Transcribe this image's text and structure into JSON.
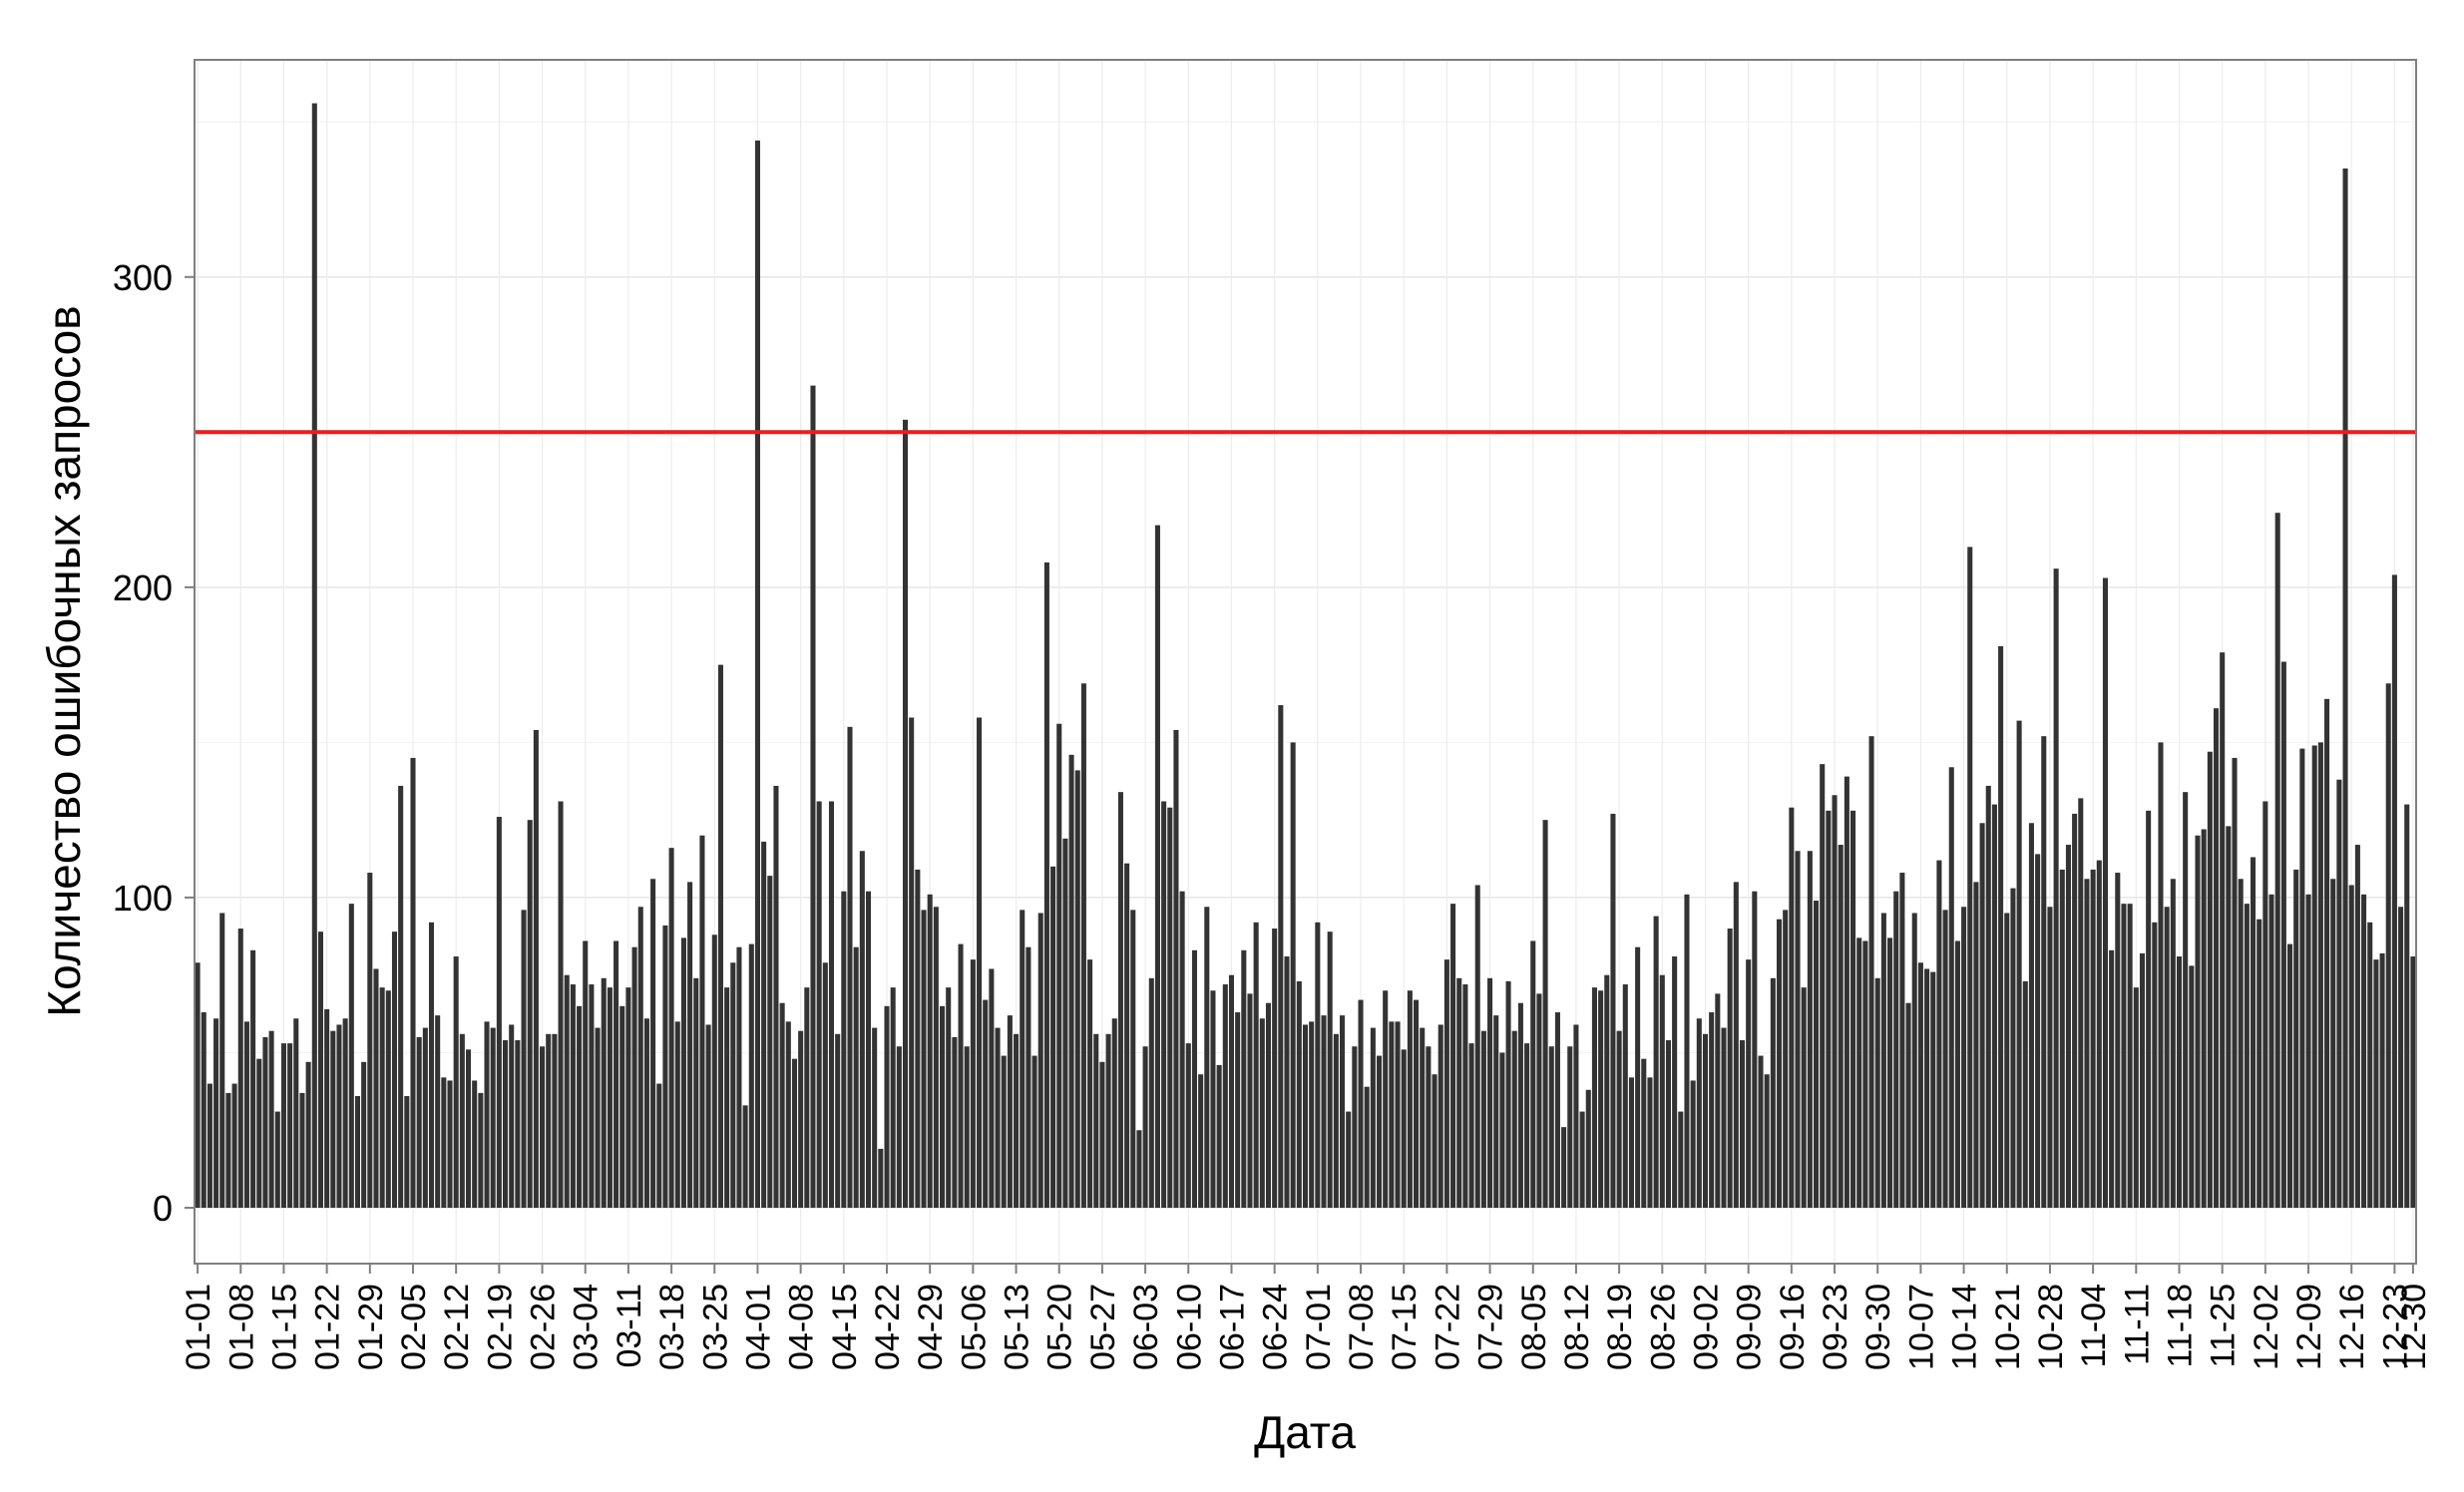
{
  "chart_data": {
    "type": "bar",
    "title": "",
    "xlabel": "Дата",
    "ylabel": "Количество ошибочных запросов",
    "ylim": [
      -18,
      370
    ],
    "yticks": [
      0,
      100,
      200,
      300
    ],
    "grid": true,
    "x_tick_labels": [
      "01-01",
      "01-08",
      "01-15",
      "01-22",
      "01-29",
      "02-05",
      "02-12",
      "02-19",
      "02-26",
      "03-04",
      "03-11",
      "03-18",
      "03-25",
      "04-01",
      "04-08",
      "04-15",
      "04-22",
      "04-29",
      "05-06",
      "05-13",
      "05-20",
      "05-27",
      "06-03",
      "06-10",
      "06-17",
      "06-24",
      "07-01",
      "07-08",
      "07-15",
      "07-22",
      "07-29",
      "08-05",
      "08-12",
      "08-19",
      "08-26",
      "09-02",
      "09-09",
      "09-16",
      "09-23",
      "09-30",
      "10-07",
      "10-14",
      "10-21",
      "10-28",
      "11-04",
      "11-11",
      "11-18",
      "11-25",
      "12-02",
      "12-09",
      "12-16",
      "12-23",
      "12-30"
    ],
    "reference_line": {
      "y": 250,
      "color": "#ee1c1c"
    },
    "bar_color": "#333333",
    "values": [
      79,
      63,
      40,
      61,
      95,
      37,
      40,
      90,
      60,
      83,
      48,
      55,
      57,
      31,
      53,
      53,
      61,
      37,
      47,
      356,
      89,
      64,
      57,
      59,
      61,
      98,
      36,
      47,
      108,
      77,
      71,
      70,
      89,
      136,
      36,
      145,
      55,
      58,
      92,
      62,
      42,
      41,
      81,
      56,
      51,
      41,
      37,
      60,
      58,
      126,
      54,
      59,
      54,
      96,
      125,
      154,
      52,
      56,
      56,
      131,
      75,
      72,
      65,
      86,
      72,
      58,
      74,
      71,
      86,
      65,
      71,
      84,
      97,
      61,
      106,
      40,
      91,
      116,
      60,
      87,
      105,
      74,
      120,
      59,
      88,
      175,
      71,
      79,
      84,
      33,
      85,
      344,
      118,
      107,
      136,
      66,
      60,
      48,
      57,
      71,
      265,
      131,
      79,
      131,
      56,
      102,
      155,
      84,
      115,
      102,
      58,
      19,
      65,
      71,
      52,
      254,
      158,
      109,
      96,
      101,
      97,
      65,
      71,
      55,
      85,
      52,
      80,
      158,
      67,
      77,
      58,
      49,
      62,
      56,
      96,
      84,
      49,
      95,
      208,
      110,
      156,
      119,
      146,
      141,
      169,
      80,
      56,
      47,
      56,
      61,
      134,
      111,
      96,
      25,
      52,
      74,
      220,
      131,
      129,
      154,
      102,
      53,
      83,
      43,
      97,
      70,
      46,
      72,
      75,
      63,
      83,
      69,
      92,
      61,
      66,
      90,
      162,
      81,
      150,
      73,
      59,
      60,
      92,
      62,
      89,
      56,
      62,
      31,
      52,
      67,
      39,
      58,
      49,
      70,
      60,
      60,
      51,
      70,
      67,
      58,
      52,
      43,
      59,
      80,
      98,
      74,
      72,
      53,
      104,
      57,
      74,
      62,
      50,
      73,
      57,
      66,
      53,
      86,
      69,
      125,
      52,
      63,
      26,
      52,
      59,
      31,
      38,
      71,
      70,
      75,
      127,
      57,
      72,
      42,
      84,
      48,
      42,
      94,
      75,
      54,
      81,
      31,
      101,
      41,
      61,
      56,
      63,
      69,
      58,
      90,
      105,
      54,
      80,
      102,
      49,
      43,
      74,
      93,
      96,
      129,
      115,
      71,
      115,
      99,
      143,
      128,
      133,
      117,
      139,
      128,
      87,
      86,
      152,
      74,
      95,
      87,
      102,
      108,
      66,
      95,
      79,
      77,
      76,
      112,
      96,
      142,
      86,
      97,
      213,
      105,
      124,
      136,
      130,
      181,
      95,
      103,
      157,
      73,
      124,
      114,
      152,
      97,
      206,
      109,
      117,
      127,
      132,
      106,
      109,
      112,
      203,
      83,
      108,
      98,
      98,
      71,
      82,
      128,
      92,
      150,
      97,
      106,
      81,
      134,
      78,
      120,
      122,
      147,
      161,
      179,
      123,
      145,
      106,
      98,
      113,
      93,
      131,
      101,
      224,
      176,
      85,
      109,
      148,
      101,
      149,
      150,
      164,
      106,
      138,
      335,
      104,
      117,
      101,
      92,
      80,
      82,
      169,
      204,
      97,
      130,
      81
    ]
  }
}
